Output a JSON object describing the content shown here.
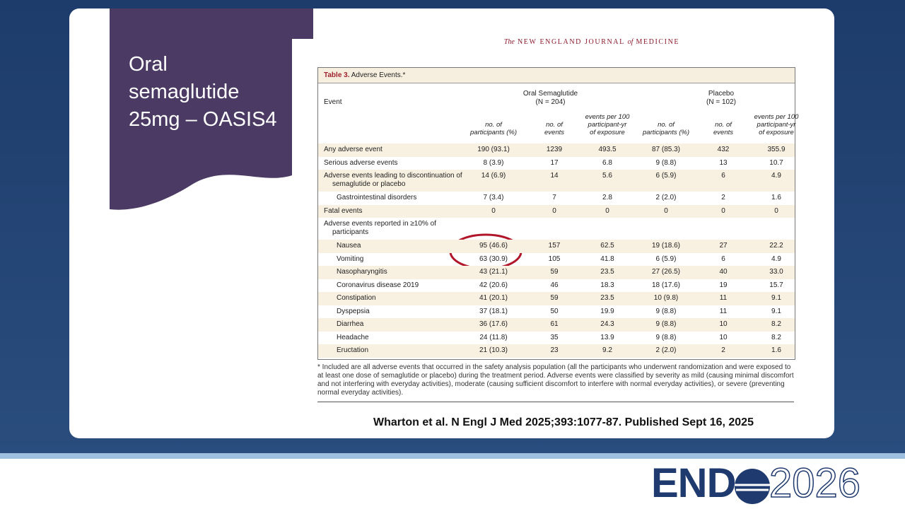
{
  "slide": {
    "title_lines": [
      "Oral",
      "semaglutide",
      "25mg – OASIS4"
    ]
  },
  "journal": [
    "The",
    "NEW ENGLAND JOURNAL",
    "of",
    "MEDICINE"
  ],
  "table": {
    "caption_label": "Table 3.",
    "caption": "Adverse Events.*",
    "event_header": "Event",
    "groups": [
      {
        "name": "Oral Semaglutide",
        "n": "(N = 204)"
      },
      {
        "name": "Placebo",
        "n": "(N = 102)"
      }
    ],
    "columns": [
      [
        "no. of",
        "participants (%)"
      ],
      [
        "no. of",
        "events"
      ],
      [
        "events per 100",
        "participant-yr",
        "of exposure"
      ],
      [
        "no. of",
        "participants (%)"
      ],
      [
        "no. of",
        "events"
      ],
      [
        "events per 100",
        "participant-yr",
        "of exposure"
      ]
    ],
    "rows": [
      {
        "label": "Any adverse event",
        "level": 0,
        "values": [
          "190 (93.1)",
          "1239",
          "493.5",
          "87 (85.3)",
          "432",
          "355.9"
        ]
      },
      {
        "label": "Serious adverse events",
        "level": 0,
        "values": [
          "8 (3.9)",
          "17",
          "6.8",
          "9 (8.8)",
          "13",
          "10.7"
        ]
      },
      {
        "label": "Adverse events leading to discontinuation of semaglutide or placebo",
        "level": 0,
        "values": [
          "14 (6.9)",
          "14",
          "5.6",
          "6 (5.9)",
          "6",
          "4.9"
        ]
      },
      {
        "label": "Gastrointestinal disorders",
        "level": 1,
        "values": [
          "7 (3.4)",
          "7",
          "2.8",
          "2 (2.0)",
          "2",
          "1.6"
        ]
      },
      {
        "label": "Fatal events",
        "level": 0,
        "values": [
          "0",
          "0",
          "0",
          "0",
          "0",
          "0"
        ]
      },
      {
        "label": "Adverse events reported in ≥10% of participants",
        "level": 0,
        "values": []
      },
      {
        "label": "Nausea",
        "level": 1,
        "values": [
          "95 (46.6)",
          "157",
          "62.5",
          "19 (18.6)",
          "27",
          "22.2"
        ]
      },
      {
        "label": "Vomiting",
        "level": 1,
        "values": [
          "63 (30.9)",
          "105",
          "41.8",
          "6 (5.9)",
          "6",
          "4.9"
        ]
      },
      {
        "label": "Nasopharyngitis",
        "level": 1,
        "values": [
          "43 (21.1)",
          "59",
          "23.5",
          "27 (26.5)",
          "40",
          "33.0"
        ]
      },
      {
        "label": "Coronavirus disease 2019",
        "level": 1,
        "values": [
          "42 (20.6)",
          "46",
          "18.3",
          "18 (17.6)",
          "19",
          "15.7"
        ]
      },
      {
        "label": "Constipation",
        "level": 1,
        "values": [
          "41 (20.1)",
          "59",
          "23.5",
          "10 (9.8)",
          "11",
          "9.1"
        ]
      },
      {
        "label": "Dyspepsia",
        "level": 1,
        "values": [
          "37 (18.1)",
          "50",
          "19.9",
          "9 (8.8)",
          "11",
          "9.1"
        ]
      },
      {
        "label": "Diarrhea",
        "level": 1,
        "values": [
          "36 (17.6)",
          "61",
          "24.3",
          "9 (8.8)",
          "10",
          "8.2"
        ]
      },
      {
        "label": "Headache",
        "level": 1,
        "values": [
          "24 (11.8)",
          "35",
          "13.9",
          "9 (8.8)",
          "10",
          "8.2"
        ]
      },
      {
        "label": "Eructation",
        "level": 1,
        "values": [
          "21 (10.3)",
          "23",
          "9.2",
          "2 (2.0)",
          "2",
          "1.6"
        ]
      }
    ],
    "footnote": "* Included are all adverse events that occurred in the safety analysis population (all the participants who underwent randomization and were exposed to at least one dose of semaglutide or placebo) during the treatment period. Adverse events were classified by severity as mild (causing minimal discomfort and not interfering with everyday activities), moderate (causing sufficient discomfort to interfere with normal everyday activities), or severe (preventing normal everyday activities)."
  },
  "citation": "Wharton et al. N Engl J Med 2025;393:1077-87.  Published Sept 16, 2025",
  "logo": [
    "END",
    "2026"
  ]
}
